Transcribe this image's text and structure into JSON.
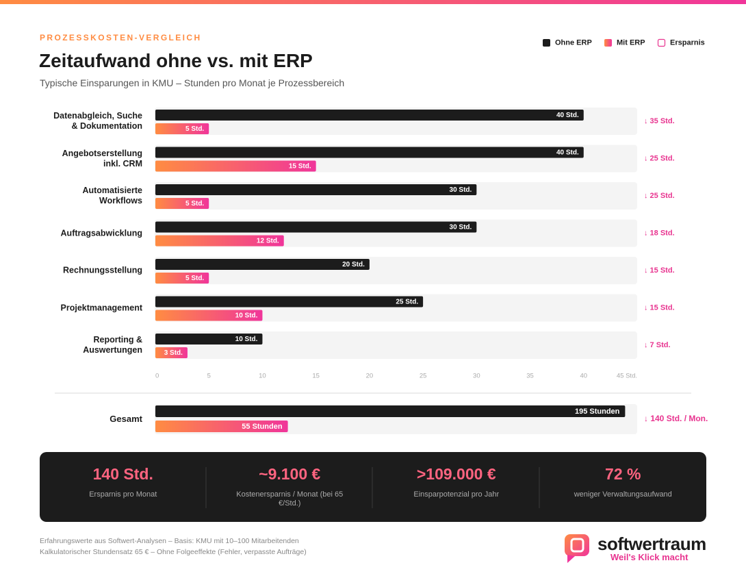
{
  "chart_data": {
    "type": "bar",
    "orientation": "horizontal",
    "eyebrow": "PROZESSKOSTEN-VERGLEICH",
    "title": "Zeitaufwand ohne vs. mit ERP",
    "subtitle": "Typische Einsparungen in KMU – Stunden pro Monat je Prozessbereich",
    "categories": [
      "Datenabgleich, Suche & Dokumentation",
      "Angebotserstellung inkl. CRM",
      "Automatisierte Workflows",
      "Auftragsabwicklung",
      "Rechnungsstellung",
      "Projektmanagement",
      "Reporting & Auswertungen"
    ],
    "series": [
      {
        "name": "Ohne ERP",
        "color": "#1c1c1c",
        "values": [
          40,
          40,
          30,
          30,
          20,
          25,
          10
        ],
        "value_labels": [
          "40 Std.",
          "40 Std.",
          "30 Std.",
          "30 Std.",
          "20 Std.",
          "25 Std.",
          "10 Std."
        ]
      },
      {
        "name": "Mit ERP",
        "color": "#ff8c42",
        "color_end": "#f0359a",
        "values": [
          5,
          15,
          5,
          12,
          5,
          10,
          3
        ],
        "value_labels": [
          "5 Std.",
          "15 Std.",
          "5 Std.",
          "12 Std.",
          "5 Std.",
          "10 Std.",
          "3 Std."
        ]
      },
      {
        "name": "Ersparnis",
        "color": "#e8338f",
        "values": [
          35,
          25,
          25,
          18,
          15,
          15,
          7
        ],
        "value_labels": [
          "↓ 35 Std.",
          "↓ 25 Std.",
          "↓ 25 Std.",
          "↓ 18 Std.",
          "↓ 15 Std.",
          "↓ 15 Std.",
          "↓ 7 Std."
        ]
      }
    ],
    "xlim": [
      0,
      45
    ],
    "xticks": [
      0,
      5,
      10,
      15,
      20,
      25,
      30,
      35,
      40,
      {
        "value": 45,
        "label": "45 Std."
      }
    ],
    "total": {
      "label": "Gesamt",
      "xlim": [
        0,
        200
      ],
      "values": [
        195,
        55
      ],
      "value_labels": [
        "195 Stunden",
        "55 Stunden"
      ],
      "saving": 140,
      "saving_label": "↓ 140 Std. / Mon."
    }
  },
  "stats": [
    {
      "value": "140 Std.",
      "label": "Ersparnis pro Monat"
    },
    {
      "value": "~9.100 €",
      "label": "Kostenersparnis / Monat (bei 65 €/Std.)"
    },
    {
      "value": ">109.000 €",
      "label": "Einsparpotenzial pro Jahr"
    },
    {
      "value": "72 %",
      "label": "weniger Verwaltungsaufwand"
    }
  ],
  "footer": {
    "notes": [
      "Erfahrungswerte aus Softwert-Analysen – Basis: KMU mit 10–100 Mitarbeitenden",
      "Kalkulatorischer Stundensatz 65 € – Ohne Folgeeffekte (Fehler, verpasste Aufträge)"
    ],
    "brand": "softwertraum",
    "tagline": "Weil's Klick macht"
  }
}
